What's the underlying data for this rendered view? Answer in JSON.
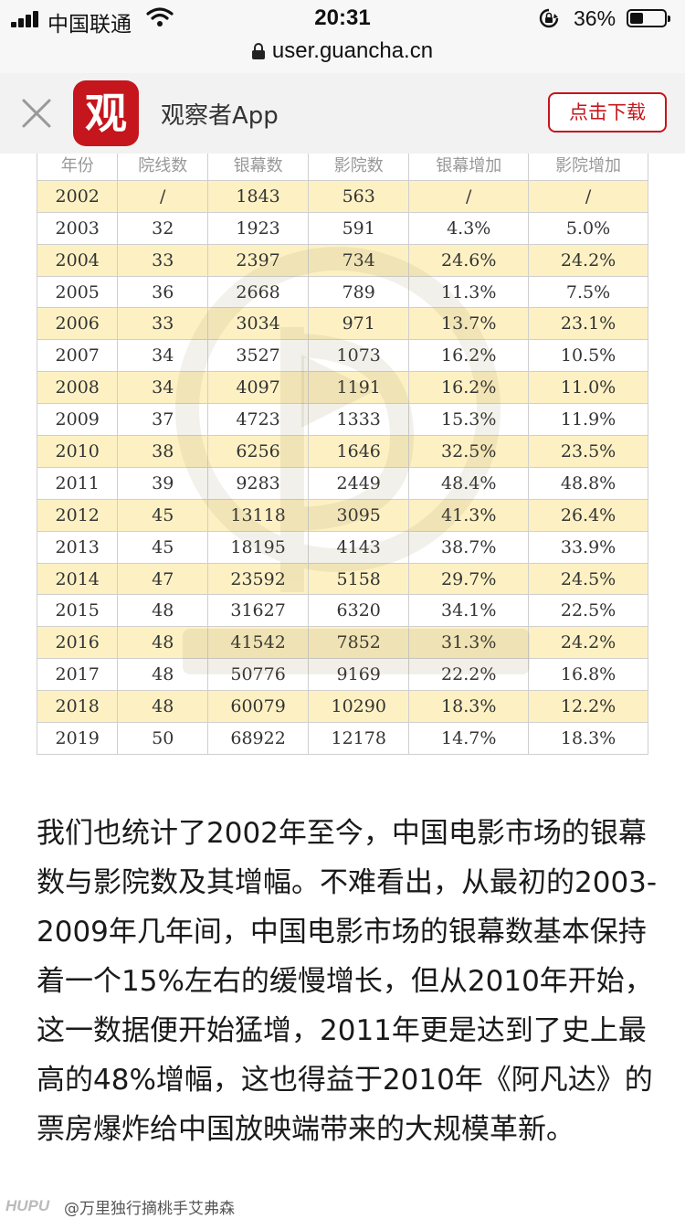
{
  "status_bar": {
    "carrier": "中国联通",
    "time": "20:31",
    "battery_percent": "36%",
    "battery_level": 0.36
  },
  "browser": {
    "url": "user.guancha.cn"
  },
  "app_banner": {
    "logo_char": "观",
    "app_name": "观察者App",
    "download_label": "点击下载"
  },
  "table": {
    "headers": [
      "年份",
      "院线数",
      "银幕数",
      "影院数",
      "银幕增加",
      "影院增加"
    ],
    "rows": [
      [
        "2002",
        "/",
        "1843",
        "563",
        "/",
        "/"
      ],
      [
        "2003",
        "32",
        "1923",
        "591",
        "4.3%",
        "5.0%"
      ],
      [
        "2004",
        "33",
        "2397",
        "734",
        "24.6%",
        "24.2%"
      ],
      [
        "2005",
        "36",
        "2668",
        "789",
        "11.3%",
        "7.5%"
      ],
      [
        "2006",
        "33",
        "3034",
        "971",
        "13.7%",
        "23.1%"
      ],
      [
        "2007",
        "34",
        "3527",
        "1073",
        "16.2%",
        "10.5%"
      ],
      [
        "2008",
        "34",
        "4097",
        "1191",
        "16.2%",
        "11.0%"
      ],
      [
        "2009",
        "37",
        "4723",
        "1333",
        "15.3%",
        "11.9%"
      ],
      [
        "2010",
        "38",
        "6256",
        "1646",
        "32.5%",
        "23.5%"
      ],
      [
        "2011",
        "39",
        "9283",
        "2449",
        "48.4%",
        "48.8%"
      ],
      [
        "2012",
        "45",
        "13118",
        "3095",
        "41.3%",
        "26.4%"
      ],
      [
        "2013",
        "45",
        "18195",
        "4143",
        "38.7%",
        "33.9%"
      ],
      [
        "2014",
        "47",
        "23592",
        "5158",
        "29.7%",
        "24.5%"
      ],
      [
        "2015",
        "48",
        "31627",
        "6320",
        "34.1%",
        "22.5%"
      ],
      [
        "2016",
        "48",
        "41542",
        "7852",
        "31.3%",
        "24.2%"
      ],
      [
        "2017",
        "48",
        "50776",
        "9169",
        "22.2%",
        "16.8%"
      ],
      [
        "2018",
        "48",
        "60079",
        "10290",
        "18.3%",
        "12.2%"
      ],
      [
        "2019",
        "50",
        "68922",
        "12178",
        "14.7%",
        "18.3%"
      ]
    ]
  },
  "article": {
    "paragraph": "我们也统计了2002年至今，中国电影市场的银幕数与影院数及其增幅。不难看出，从最初的2003-2009年几年间，中国电影市场的银幕数基本保持着一个15%左右的缓慢增长，但从2010年开始，这一数据便开始猛增，2011年更是达到了史上最高的48%增幅，这也得益于2010年《阿凡达》的票房爆炸给中国放映端带来的大规模革新。"
  },
  "footer": {
    "brand": "HUPU",
    "user": "@万里独行摘桃手艾弗森"
  },
  "colors": {
    "brand_red": "#c4161c",
    "row_highlight": "#fdf1c4"
  }
}
